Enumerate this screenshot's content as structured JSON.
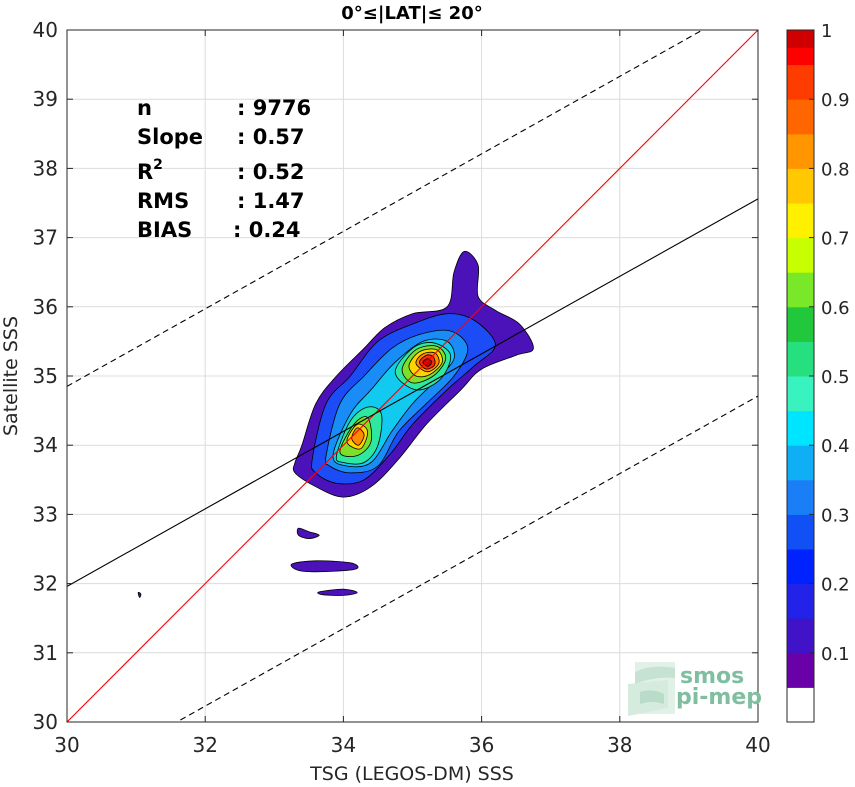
{
  "chart_data": {
    "type": "contour-scatter",
    "title": "0°≤|LAT|≤ 20°",
    "xlabel": "TSG (LEGOS-DM) SSS",
    "ylabel": "Satellite SSS",
    "xlim": [
      30,
      40
    ],
    "ylim": [
      30,
      40
    ],
    "xticks": [
      30,
      32,
      34,
      36,
      38,
      40
    ],
    "yticks": [
      30,
      31,
      32,
      33,
      34,
      35,
      36,
      37,
      38,
      39,
      40
    ],
    "grid": true,
    "stats": [
      {
        "label": "n",
        "value": ": 9776"
      },
      {
        "label": "Slope",
        "value": ": 0.57"
      },
      {
        "label": "R",
        "sup": "2",
        "value": ": 0.52"
      },
      {
        "label": "RMS",
        "value": ": 1.47"
      },
      {
        "label": "BIAS",
        "value": ": 0.24"
      }
    ],
    "lines": [
      {
        "name": "1:1",
        "color": "#ff0000",
        "style": "solid",
        "slope": 1.0,
        "intercept": 0.0
      },
      {
        "name": "fit",
        "color": "#000000",
        "style": "solid",
        "slope": 0.56,
        "intercept": 15.16
      },
      {
        "name": "upper",
        "color": "#000000",
        "style": "dashed",
        "slope": 0.56,
        "intercept": 18.05
      },
      {
        "name": "lower",
        "color": "#000000",
        "style": "dashed",
        "slope": 0.56,
        "intercept": 12.31
      }
    ],
    "density_contours": [
      {
        "level": 0.05,
        "color": "#4a12b8",
        "points": [
          [
            33.3,
            33.75
          ],
          [
            33.4,
            34.0
          ],
          [
            33.6,
            34.6
          ],
          [
            33.9,
            35.0
          ],
          [
            34.3,
            35.4
          ],
          [
            34.6,
            35.7
          ],
          [
            35.0,
            35.9
          ],
          [
            35.5,
            36.0
          ],
          [
            35.6,
            36.5
          ],
          [
            35.75,
            36.8
          ],
          [
            35.95,
            36.6
          ],
          [
            35.95,
            36.15
          ],
          [
            36.2,
            35.95
          ],
          [
            36.55,
            35.75
          ],
          [
            36.75,
            35.4
          ],
          [
            36.5,
            35.3
          ],
          [
            36.0,
            35.1
          ],
          [
            35.7,
            34.8
          ],
          [
            35.2,
            34.3
          ],
          [
            34.8,
            33.8
          ],
          [
            34.4,
            33.4
          ],
          [
            34.0,
            33.25
          ],
          [
            33.6,
            33.4
          ],
          [
            33.3,
            33.6
          ]
        ]
      },
      {
        "level": 0.05,
        "color": "#4a12b8",
        "points": [
          [
            33.35,
            32.8
          ],
          [
            33.5,
            32.75
          ],
          [
            33.65,
            32.7
          ],
          [
            33.5,
            32.65
          ],
          [
            33.35,
            32.7
          ]
        ]
      },
      {
        "level": 0.05,
        "color": "#4a12b8",
        "points": [
          [
            33.25,
            32.28
          ],
          [
            33.6,
            32.33
          ],
          [
            34.1,
            32.3
          ],
          [
            34.2,
            32.22
          ],
          [
            33.9,
            32.18
          ],
          [
            33.4,
            32.18
          ]
        ]
      },
      {
        "level": 0.05,
        "color": "#4a12b8",
        "points": [
          [
            33.65,
            31.88
          ],
          [
            34.0,
            31.92
          ],
          [
            34.2,
            31.87
          ],
          [
            34.0,
            31.83
          ],
          [
            33.7,
            31.84
          ]
        ]
      },
      {
        "level": 0.05,
        "color": "#4a12b8",
        "points": [
          [
            31.03,
            31.87
          ],
          [
            31.07,
            31.85
          ],
          [
            31.05,
            31.8
          ]
        ]
      },
      {
        "level": 0.15,
        "color": "#1c4cf5",
        "points": [
          [
            33.55,
            33.8
          ],
          [
            33.75,
            34.6
          ],
          [
            34.1,
            35.0
          ],
          [
            34.5,
            35.5
          ],
          [
            35.0,
            35.75
          ],
          [
            35.5,
            35.9
          ],
          [
            35.9,
            35.8
          ],
          [
            36.2,
            35.45
          ],
          [
            35.9,
            35.15
          ],
          [
            35.5,
            34.8
          ],
          [
            35.0,
            34.3
          ],
          [
            34.7,
            33.9
          ],
          [
            34.3,
            33.5
          ],
          [
            33.9,
            33.45
          ],
          [
            33.6,
            33.6
          ]
        ]
      },
      {
        "level": 0.25,
        "color": "#1a8cf8",
        "points": [
          [
            33.75,
            33.85
          ],
          [
            33.95,
            34.6
          ],
          [
            34.3,
            35.0
          ],
          [
            34.7,
            35.4
          ],
          [
            35.1,
            35.6
          ],
          [
            35.55,
            35.65
          ],
          [
            35.8,
            35.4
          ],
          [
            35.6,
            35.0
          ],
          [
            35.2,
            34.6
          ],
          [
            34.8,
            34.2
          ],
          [
            34.5,
            33.7
          ],
          [
            34.1,
            33.6
          ],
          [
            33.8,
            33.7
          ]
        ]
      },
      {
        "level": 0.35,
        "color": "#12c9ef",
        "points": [
          [
            33.85,
            33.85
          ],
          [
            34.1,
            34.45
          ],
          [
            34.4,
            34.8
          ],
          [
            34.75,
            35.2
          ],
          [
            35.15,
            35.5
          ],
          [
            35.5,
            35.5
          ],
          [
            35.6,
            35.25
          ],
          [
            35.35,
            34.95
          ],
          [
            35.0,
            34.6
          ],
          [
            34.7,
            34.2
          ],
          [
            34.4,
            33.75
          ],
          [
            34.05,
            33.7
          ]
        ]
      },
      {
        "level": 0.45,
        "color": "#2ee8a0",
        "points": [
          [
            33.9,
            33.85
          ],
          [
            34.1,
            34.35
          ],
          [
            34.35,
            34.55
          ],
          [
            34.55,
            34.45
          ],
          [
            34.5,
            34.0
          ],
          [
            34.3,
            33.75
          ],
          [
            34.0,
            33.75
          ]
        ]
      },
      {
        "level": 0.45,
        "color": "#2ee8a0",
        "points": [
          [
            34.75,
            35.05
          ],
          [
            35.0,
            35.4
          ],
          [
            35.3,
            35.48
          ],
          [
            35.55,
            35.3
          ],
          [
            35.4,
            34.95
          ],
          [
            35.05,
            34.8
          ]
        ]
      },
      {
        "level": 0.55,
        "color": "#7ddf28",
        "points": [
          [
            33.95,
            33.9
          ],
          [
            34.15,
            34.3
          ],
          [
            34.35,
            34.4
          ],
          [
            34.4,
            34.05
          ],
          [
            34.2,
            33.85
          ]
        ]
      },
      {
        "level": 0.55,
        "color": "#7ddf28",
        "points": [
          [
            34.85,
            35.1
          ],
          [
            35.05,
            35.38
          ],
          [
            35.35,
            35.43
          ],
          [
            35.48,
            35.25
          ],
          [
            35.3,
            35.0
          ],
          [
            35.0,
            34.9
          ]
        ]
      },
      {
        "level": 0.65,
        "color": "#ffd400",
        "points": [
          [
            34.05,
            34.05
          ],
          [
            34.2,
            34.3
          ],
          [
            34.35,
            34.2
          ],
          [
            34.25,
            33.95
          ]
        ]
      },
      {
        "level": 0.65,
        "color": "#ffd400",
        "points": [
          [
            34.95,
            35.15
          ],
          [
            35.1,
            35.35
          ],
          [
            35.35,
            35.38
          ],
          [
            35.43,
            35.2
          ],
          [
            35.25,
            35.02
          ],
          [
            35.05,
            35.0
          ]
        ]
      },
      {
        "level": 0.75,
        "color": "#ff8a00",
        "points": [
          [
            34.12,
            34.1
          ],
          [
            34.2,
            34.25
          ],
          [
            34.3,
            34.15
          ],
          [
            34.22,
            34.0
          ]
        ]
      },
      {
        "level": 0.75,
        "color": "#ff8a00",
        "points": [
          [
            35.05,
            35.18
          ],
          [
            35.15,
            35.32
          ],
          [
            35.33,
            35.33
          ],
          [
            35.38,
            35.18
          ],
          [
            35.22,
            35.06
          ]
        ]
      },
      {
        "level": 0.85,
        "color": "#ff2a00",
        "points": [
          [
            35.1,
            35.2
          ],
          [
            35.2,
            35.3
          ],
          [
            35.3,
            35.28
          ],
          [
            35.32,
            35.16
          ],
          [
            35.2,
            35.1
          ]
        ]
      },
      {
        "level": 0.95,
        "color": "#cc0000",
        "points": [
          [
            35.15,
            35.2
          ],
          [
            35.22,
            35.25
          ],
          [
            35.28,
            35.2
          ],
          [
            35.22,
            35.14
          ]
        ]
      }
    ],
    "colorbar": {
      "colors": [
        "#ffffff",
        "#6a00a8",
        "#4012c8",
        "#2222e8",
        "#0022ff",
        "#1150f5",
        "#1a7ef6",
        "#10aff5",
        "#00e5ff",
        "#38f2c0",
        "#26e080",
        "#22c83c",
        "#78e828",
        "#c8ff00",
        "#fff000",
        "#ffc800",
        "#ff9600",
        "#ff6600",
        "#ff3c00",
        "#ff0000",
        "#d00000",
        "#900000"
      ],
      "boundaries": [
        0,
        0.05,
        0.1,
        0.15,
        0.2,
        0.25,
        0.3,
        0.35,
        0.4,
        0.45,
        0.5,
        0.55,
        0.6,
        0.65,
        0.7,
        0.75,
        0.8,
        0.85,
        0.9,
        0.95,
        0.975,
        1.0
      ],
      "ticks": [
        0.1,
        0.2,
        0.3,
        0.4,
        0.5,
        0.6,
        0.7,
        0.8,
        0.9,
        1
      ],
      "tick_labels": [
        "0.1",
        "0.2",
        "0.3",
        "0.4",
        "0.5",
        "0.6",
        "0.7",
        "0.8",
        "0.9",
        "1"
      ]
    }
  },
  "watermark": {
    "line1": "smos",
    "line2": "pi-mep",
    "color": "#7fbfa0"
  }
}
